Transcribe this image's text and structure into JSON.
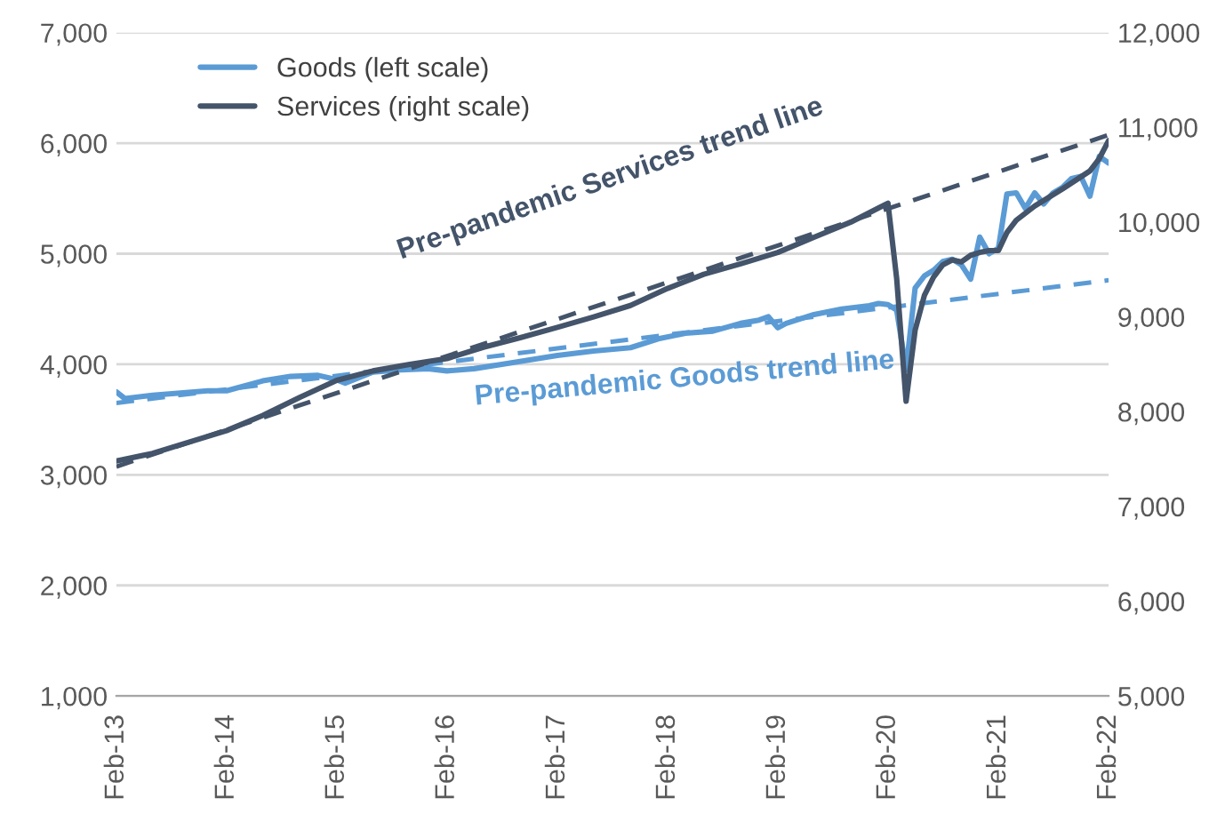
{
  "chart_data": {
    "type": "line",
    "xlim": [
      "2013-02",
      "2022-02"
    ],
    "xticks": [
      {
        "value": "2013-02",
        "label": "Feb-13"
      },
      {
        "value": "2014-02",
        "label": "Feb-14"
      },
      {
        "value": "2015-02",
        "label": "Feb-15"
      },
      {
        "value": "2016-02",
        "label": "Feb-16"
      },
      {
        "value": "2017-02",
        "label": "Feb-17"
      },
      {
        "value": "2018-02",
        "label": "Feb-18"
      },
      {
        "value": "2019-02",
        "label": "Feb-19"
      },
      {
        "value": "2020-02",
        "label": "Feb-20"
      },
      {
        "value": "2021-02",
        "label": "Feb-21"
      },
      {
        "value": "2022-02",
        "label": "Feb-22"
      }
    ],
    "ylim": [
      1000,
      7000
    ],
    "yticks": [
      {
        "value": 1000,
        "label": "1,000"
      },
      {
        "value": 2000,
        "label": "2,000"
      },
      {
        "value": 3000,
        "label": "3,000"
      },
      {
        "value": 4000,
        "label": "4,000"
      },
      {
        "value": 5000,
        "label": "5,000"
      },
      {
        "value": 6000,
        "label": "6,000"
      },
      {
        "value": 7000,
        "label": "7,000"
      }
    ],
    "y2lim": [
      5000,
      12000
    ],
    "y2ticks": [
      {
        "value": 5000,
        "label": "5,000"
      },
      {
        "value": 6000,
        "label": "6,000"
      },
      {
        "value": 7000,
        "label": "7,000"
      },
      {
        "value": 8000,
        "label": "8,000"
      },
      {
        "value": 9000,
        "label": "9,000"
      },
      {
        "value": 10000,
        "label": "10,000"
      },
      {
        "value": 11000,
        "label": "11,000"
      },
      {
        "value": 12000,
        "label": "12,000"
      }
    ],
    "grid": "y",
    "legend": "top left",
    "series": [
      {
        "name": "Goods (left scale)",
        "color": "#5b9bd5",
        "line_style": "solid",
        "x": [
          "2013-02",
          "2013-03",
          "2013-06",
          "2013-09",
          "2013-12",
          "2014-02",
          "2014-06",
          "2014-09",
          "2014-12",
          "2015-02",
          "2015-03",
          "2015-06",
          "2015-09",
          "2015-12",
          "2016-02",
          "2016-05",
          "2016-08",
          "2016-11",
          "2017-02",
          "2017-06",
          "2017-10",
          "2018-01",
          "2018-04",
          "2018-07",
          "2018-10",
          "2018-12",
          "2019-01",
          "2019-02",
          "2019-03",
          "2019-06",
          "2019-09",
          "2019-12",
          "2020-01",
          "2020-02",
          "2020-03",
          "2020-04",
          "2020-05",
          "2020-06",
          "2020-07",
          "2020-08",
          "2020-09",
          "2020-10",
          "2020-11",
          "2020-12",
          "2021-01",
          "2021-02",
          "2021-03",
          "2021-04",
          "2021-05",
          "2021-06",
          "2021-07",
          "2021-08",
          "2021-09",
          "2021-10",
          "2021-11",
          "2021-12",
          "2022-01",
          "2022-02"
        ],
        "values": [
          3750,
          3690,
          3720,
          3740,
          3760,
          3760,
          3850,
          3890,
          3900,
          3860,
          3830,
          3930,
          3950,
          3960,
          3940,
          3960,
          4000,
          4040,
          4080,
          4120,
          4150,
          4230,
          4280,
          4300,
          4370,
          4400,
          4430,
          4330,
          4370,
          4450,
          4500,
          4530,
          4550,
          4540,
          4490,
          3950,
          4690,
          4800,
          4850,
          4930,
          4950,
          4900,
          4770,
          5150,
          5000,
          5050,
          5540,
          5550,
          5410,
          5550,
          5450,
          5550,
          5600,
          5680,
          5700,
          5520,
          5880,
          5820
        ]
      },
      {
        "name": "Services (right scale)",
        "color": "#44546a",
        "axis": "y2",
        "line_style": "solid",
        "x": [
          "2013-02",
          "2013-06",
          "2013-10",
          "2014-02",
          "2014-06",
          "2014-10",
          "2015-02",
          "2015-06",
          "2015-10",
          "2016-02",
          "2016-06",
          "2016-10",
          "2017-02",
          "2017-06",
          "2017-10",
          "2018-02",
          "2018-06",
          "2018-10",
          "2019-02",
          "2019-06",
          "2019-10",
          "2020-01",
          "2020-02",
          "2020-03",
          "2020-04",
          "2020-05",
          "2020-06",
          "2020-07",
          "2020-08",
          "2020-09",
          "2020-10",
          "2020-11",
          "2020-12",
          "2021-01",
          "2021-02",
          "2021-03",
          "2021-04",
          "2021-06",
          "2021-09",
          "2021-12",
          "2022-01",
          "2022-02"
        ],
        "values": [
          7480,
          7560,
          7680,
          7800,
          7960,
          8150,
          8330,
          8430,
          8500,
          8560,
          8680,
          8780,
          8890,
          9000,
          9120,
          9300,
          9450,
          9560,
          9680,
          9840,
          10000,
          10150,
          10200,
          9400,
          8110,
          8860,
          9230,
          9420,
          9550,
          9600,
          9580,
          9650,
          9680,
          9700,
          9700,
          9890,
          10020,
          10170,
          10350,
          10540,
          10670,
          10860
        ]
      },
      {
        "color": "#5b9bd5",
        "line_style": "dashed",
        "x": [
          "2013-02",
          "2022-02"
        ],
        "values": [
          3650,
          4760
        ]
      },
      {
        "color": "#44546a",
        "axis": "y2",
        "line_style": "dashed",
        "x": [
          "2013-02",
          "2022-02"
        ],
        "values": [
          7420,
          10920
        ]
      }
    ],
    "annotations": [
      "Pre-pandemic Services trend line",
      "Pre-pandemic Goods trend line"
    ]
  }
}
